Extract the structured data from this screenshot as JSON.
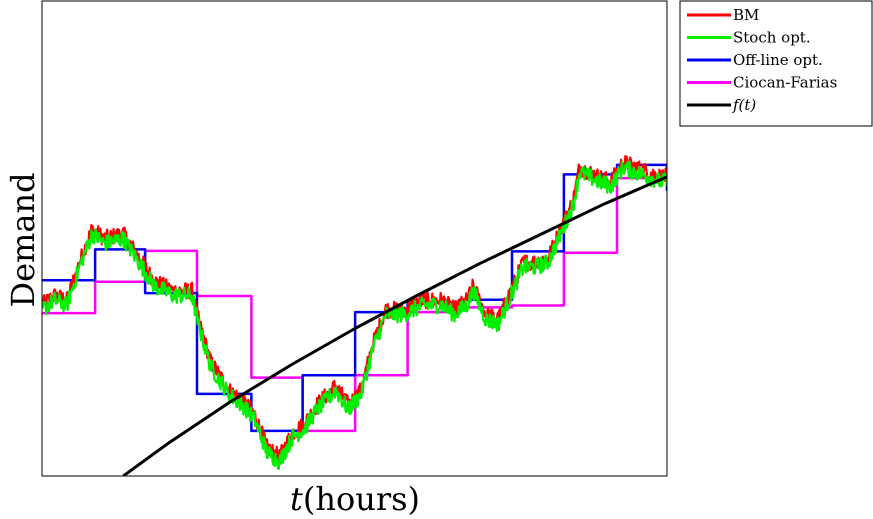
{
  "chart_data": {
    "type": "line",
    "xlabel_italic": "t",
    "xlabel_rest": "(hours)",
    "ylabel": "Demand",
    "xlim": [
      0,
      1
    ],
    "ylim": [
      0,
      1
    ],
    "grid": false,
    "legend_placement": "outside-top-right",
    "ticks_shown": false,
    "series": [
      {
        "name": "BM",
        "color": "#ff0000",
        "style": "noisy",
        "anchors": [
          [
            0.0,
            0.36
          ],
          [
            0.02,
            0.38
          ],
          [
            0.04,
            0.37
          ],
          [
            0.06,
            0.45
          ],
          [
            0.08,
            0.52
          ],
          [
            0.1,
            0.5
          ],
          [
            0.13,
            0.51
          ],
          [
            0.15,
            0.47
          ],
          [
            0.18,
            0.41
          ],
          [
            0.21,
            0.39
          ],
          [
            0.24,
            0.39
          ],
          [
            0.25,
            0.33
          ],
          [
            0.27,
            0.24
          ],
          [
            0.3,
            0.18
          ],
          [
            0.32,
            0.16
          ],
          [
            0.34,
            0.13
          ],
          [
            0.36,
            0.06
          ],
          [
            0.38,
            0.04
          ],
          [
            0.4,
            0.09
          ],
          [
            0.42,
            0.11
          ],
          [
            0.44,
            0.15
          ],
          [
            0.47,
            0.19
          ],
          [
            0.49,
            0.15
          ],
          [
            0.51,
            0.18
          ],
          [
            0.53,
            0.28
          ],
          [
            0.55,
            0.35
          ],
          [
            0.58,
            0.35
          ],
          [
            0.61,
            0.37
          ],
          [
            0.64,
            0.37
          ],
          [
            0.66,
            0.35
          ],
          [
            0.68,
            0.37
          ],
          [
            0.69,
            0.4
          ],
          [
            0.71,
            0.34
          ],
          [
            0.73,
            0.33
          ],
          [
            0.75,
            0.39
          ],
          [
            0.77,
            0.45
          ],
          [
            0.79,
            0.45
          ],
          [
            0.81,
            0.46
          ],
          [
            0.83,
            0.52
          ],
          [
            0.85,
            0.58
          ],
          [
            0.86,
            0.65
          ],
          [
            0.89,
            0.63
          ],
          [
            0.91,
            0.62
          ],
          [
            0.93,
            0.66
          ],
          [
            0.95,
            0.65
          ],
          [
            0.97,
            0.64
          ],
          [
            0.99,
            0.63
          ],
          [
            1.0,
            0.63
          ]
        ]
      },
      {
        "name": "Stoch opt.",
        "color": "#00ee00",
        "style": "noisy",
        "anchors": [
          [
            0.0,
            0.35
          ],
          [
            0.02,
            0.37
          ],
          [
            0.04,
            0.36
          ],
          [
            0.06,
            0.44
          ],
          [
            0.08,
            0.51
          ],
          [
            0.1,
            0.49
          ],
          [
            0.13,
            0.5
          ],
          [
            0.15,
            0.46
          ],
          [
            0.18,
            0.4
          ],
          [
            0.21,
            0.38
          ],
          [
            0.24,
            0.38
          ],
          [
            0.25,
            0.32
          ],
          [
            0.27,
            0.23
          ],
          [
            0.3,
            0.17
          ],
          [
            0.32,
            0.15
          ],
          [
            0.34,
            0.12
          ],
          [
            0.36,
            0.05
          ],
          [
            0.38,
            0.03
          ],
          [
            0.4,
            0.08
          ],
          [
            0.42,
            0.1
          ],
          [
            0.44,
            0.14
          ],
          [
            0.47,
            0.18
          ],
          [
            0.49,
            0.14
          ],
          [
            0.51,
            0.17
          ],
          [
            0.53,
            0.27
          ],
          [
            0.55,
            0.34
          ],
          [
            0.58,
            0.34
          ],
          [
            0.61,
            0.36
          ],
          [
            0.64,
            0.36
          ],
          [
            0.66,
            0.34
          ],
          [
            0.68,
            0.36
          ],
          [
            0.69,
            0.39
          ],
          [
            0.71,
            0.33
          ],
          [
            0.73,
            0.32
          ],
          [
            0.75,
            0.38
          ],
          [
            0.77,
            0.44
          ],
          [
            0.79,
            0.44
          ],
          [
            0.81,
            0.45
          ],
          [
            0.83,
            0.51
          ],
          [
            0.85,
            0.57
          ],
          [
            0.86,
            0.64
          ],
          [
            0.89,
            0.62
          ],
          [
            0.91,
            0.61
          ],
          [
            0.93,
            0.65
          ],
          [
            0.95,
            0.64
          ],
          [
            0.97,
            0.63
          ],
          [
            0.99,
            0.62
          ],
          [
            1.0,
            0.62
          ]
        ]
      },
      {
        "name": "Off-line opt.",
        "color": "#0000ee",
        "style": "step",
        "steps": [
          [
            0.0,
            0.412
          ],
          [
            0.085,
            0.477
          ],
          [
            0.165,
            0.385
          ],
          [
            0.248,
            0.173
          ],
          [
            0.335,
            0.095
          ],
          [
            0.417,
            0.212
          ],
          [
            0.501,
            0.345
          ],
          [
            0.585,
            0.365
          ],
          [
            0.668,
            0.371
          ],
          [
            0.752,
            0.473
          ],
          [
            0.835,
            0.635
          ],
          [
            0.92,
            0.655
          ],
          [
            1.0,
            0.6
          ]
        ]
      },
      {
        "name": "Ciocan-Farias",
        "color": "#ff00ff",
        "style": "step",
        "steps": [
          [
            0.0,
            0.343
          ],
          [
            0.085,
            0.409
          ],
          [
            0.165,
            0.474
          ],
          [
            0.248,
            0.379
          ],
          [
            0.335,
            0.207
          ],
          [
            0.417,
            0.095
          ],
          [
            0.501,
            0.212
          ],
          [
            0.585,
            0.345
          ],
          [
            0.668,
            0.355
          ],
          [
            0.752,
            0.359
          ],
          [
            0.835,
            0.47
          ],
          [
            0.92,
            0.627
          ],
          [
            1.0,
            0.627
          ]
        ]
      },
      {
        "name": "f(t)",
        "label_italic": true,
        "color": "#000000",
        "style": "curve",
        "points": [
          [
            0.13,
            0.0
          ],
          [
            0.2,
            0.067
          ],
          [
            0.3,
            0.155
          ],
          [
            0.4,
            0.235
          ],
          [
            0.5,
            0.31
          ],
          [
            0.6,
            0.38
          ],
          [
            0.7,
            0.447
          ],
          [
            0.8,
            0.51
          ],
          [
            0.9,
            0.573
          ],
          [
            1.0,
            0.63
          ]
        ]
      }
    ]
  }
}
